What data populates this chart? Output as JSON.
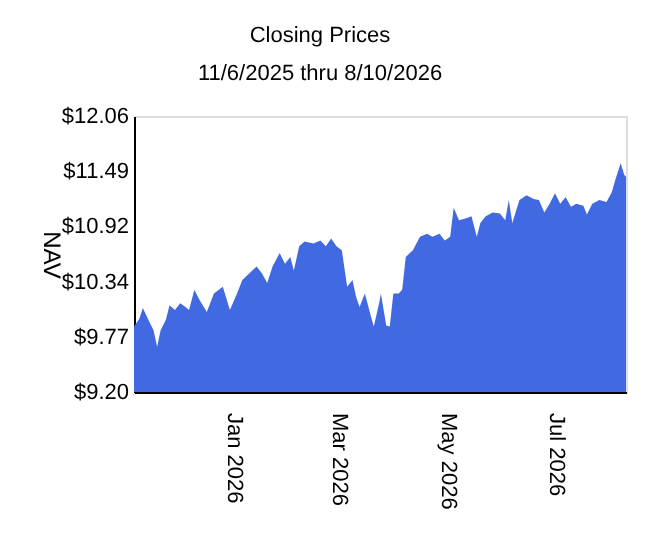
{
  "chart_data": {
    "type": "area",
    "title": "Closing Prices",
    "subtitle": "11/6/2025 thru 8/10/2026",
    "ylabel": "NAV",
    "x": [
      "2025-11-06",
      "2025-11-09",
      "2025-11-11",
      "2025-11-14",
      "2025-11-17",
      "2025-11-19",
      "2025-11-21",
      "2025-11-24",
      "2025-11-26",
      "2025-11-29",
      "2025-12-02",
      "2025-12-05",
      "2025-12-07",
      "2025-12-10",
      "2025-12-13",
      "2025-12-17",
      "2025-12-21",
      "2025-12-26",
      "2025-12-30",
      "2026-01-03",
      "2026-01-06",
      "2026-01-10",
      "2026-01-14",
      "2026-01-17",
      "2026-01-20",
      "2026-01-23",
      "2026-01-27",
      "2026-01-30",
      "2026-02-02",
      "2026-02-04",
      "2026-02-07",
      "2026-02-10",
      "2026-02-15",
      "2026-02-19",
      "2026-02-22",
      "2026-02-25",
      "2026-02-28",
      "2026-03-03",
      "2026-03-06",
      "2026-03-09",
      "2026-03-11",
      "2026-03-13",
      "2026-03-16",
      "2026-03-19",
      "2026-03-21",
      "2026-03-24",
      "2026-03-25",
      "2026-03-28",
      "2026-03-30",
      "2026-04-01",
      "2026-04-04",
      "2026-04-06",
      "2026-04-08",
      "2026-04-12",
      "2026-04-16",
      "2026-04-20",
      "2026-04-23",
      "2026-04-27",
      "2026-04-30",
      "2026-05-03",
      "2026-05-05",
      "2026-05-08",
      "2026-05-12",
      "2026-05-15",
      "2026-05-18",
      "2026-05-20",
      "2026-05-23",
      "2026-05-27",
      "2026-05-31",
      "2026-06-03",
      "2026-06-05",
      "2026-06-07",
      "2026-06-11",
      "2026-06-15",
      "2026-06-19",
      "2026-06-22",
      "2026-06-25",
      "2026-06-28",
      "2026-07-01",
      "2026-07-04",
      "2026-07-07",
      "2026-07-10",
      "2026-07-13",
      "2026-07-17",
      "2026-07-19",
      "2026-07-22",
      "2026-07-26",
      "2026-07-30",
      "2026-08-02",
      "2026-08-04",
      "2026-08-07",
      "2026-08-09",
      "2026-08-10"
    ],
    "series": [
      {
        "color": "#4169e1",
        "values": [
          9.88,
          9.96,
          10.07,
          9.95,
          9.84,
          9.67,
          9.84,
          9.95,
          10.1,
          10.05,
          10.12,
          10.08,
          10.05,
          10.26,
          10.15,
          10.03,
          10.22,
          10.29,
          10.05,
          10.22,
          10.36,
          10.43,
          10.5,
          10.43,
          10.33,
          10.5,
          10.64,
          10.53,
          10.6,
          10.46,
          10.71,
          10.76,
          10.74,
          10.77,
          10.71,
          10.79,
          10.71,
          10.67,
          10.29,
          10.36,
          10.19,
          10.08,
          10.22,
          10.01,
          9.88,
          10.12,
          10.22,
          9.89,
          9.88,
          10.22,
          10.22,
          10.26,
          10.6,
          10.67,
          10.81,
          10.84,
          10.81,
          10.84,
          10.77,
          10.81,
          11.11,
          10.98,
          11.0,
          11.02,
          10.81,
          10.95,
          11.02,
          11.06,
          11.05,
          10.98,
          11.19,
          10.95,
          11.19,
          11.24,
          11.2,
          11.19,
          11.06,
          11.15,
          11.26,
          11.15,
          11.22,
          11.12,
          11.15,
          11.13,
          11.04,
          11.15,
          11.19,
          11.17,
          11.27,
          11.4,
          11.57,
          11.45,
          11.43
        ]
      }
    ],
    "xlim": [
      "2025-11-06",
      "2026-08-10"
    ],
    "xticks": [
      {
        "value": "2026-01-01",
        "label": "Jan  2026"
      },
      {
        "value": "2026-03-01",
        "label": "Mar  2026"
      },
      {
        "value": "2026-05-01",
        "label": "May  2026"
      },
      {
        "value": "2026-07-01",
        "label": "Jul  2026"
      }
    ],
    "ylim": [
      9.2,
      12.06
    ],
    "yticks": [
      {
        "value": 9.2,
        "label": "$9.20"
      },
      {
        "value": 9.77,
        "label": "$9.77"
      },
      {
        "value": 10.34,
        "label": "$10.34"
      },
      {
        "value": 10.92,
        "label": "$10.92"
      },
      {
        "value": 11.49,
        "label": "$11.49"
      },
      {
        "value": 12.06,
        "label": "$12.06"
      }
    ],
    "grid": false
  }
}
